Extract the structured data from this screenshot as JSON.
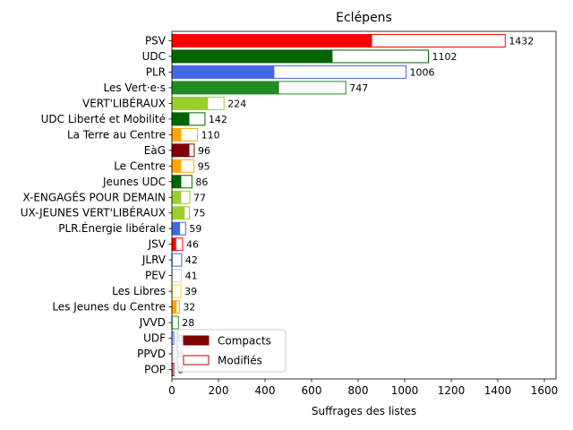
{
  "chart_data": {
    "type": "bar",
    "orientation": "horizontal",
    "title": "Eclépens",
    "xlabel": "Suffrages des listes",
    "ylabel": "",
    "xlim": [
      0,
      1650
    ],
    "xticks": [
      0,
      200,
      400,
      600,
      800,
      1000,
      1200,
      1400,
      1600
    ],
    "grid": false,
    "legend": {
      "placement": "lower-left",
      "entries": [
        {
          "label": "Compacts",
          "style": "filled",
          "color": "#800000"
        },
        {
          "label": "Modifiés",
          "style": "outline",
          "color": "#b00000"
        }
      ]
    },
    "categories": [
      "PSV",
      "UDC",
      "PLR",
      "Les Vert·e·s",
      "VERT'LIBÉRAUX",
      "UDC Liberté et Mobilité",
      "La Terre au Centre",
      "EàG",
      "Le Centre",
      "Jeunes UDC",
      "X-ENGAGÉS POUR DEMAIN",
      "UX-JEUNES VERT'LIBÉRAUX",
      "PLR.Énergie libérale",
      "JSV",
      "JLRV",
      "PEV",
      "Les Libres",
      "Les Jeunes du Centre",
      "JVVD",
      "UDF",
      "PPVD",
      "POP"
    ],
    "totals": [
      1432,
      1102,
      1006,
      747,
      224,
      142,
      110,
      96,
      95,
      86,
      77,
      75,
      59,
      46,
      42,
      41,
      39,
      32,
      28,
      8,
      8,
      8
    ],
    "compacts": [
      860,
      690,
      440,
      460,
      155,
      75,
      40,
      75,
      40,
      40,
      40,
      55,
      35,
      18,
      3,
      3,
      3,
      20,
      3,
      3,
      3,
      3
    ],
    "colors": [
      "#ff0000",
      "#006400",
      "#4169e1",
      "#228b22",
      "#9acd32",
      "#006400",
      "#ffa500",
      "#800000",
      "#ffa500",
      "#006400",
      "#9acd32",
      "#9acd32",
      "#4169e1",
      "#ff0000",
      "#4169e1",
      "#d3d3d3",
      "#ffd700",
      "#ffa500",
      "#228b22",
      "#4169e1",
      "#d3d3d3",
      "#800000"
    ]
  }
}
